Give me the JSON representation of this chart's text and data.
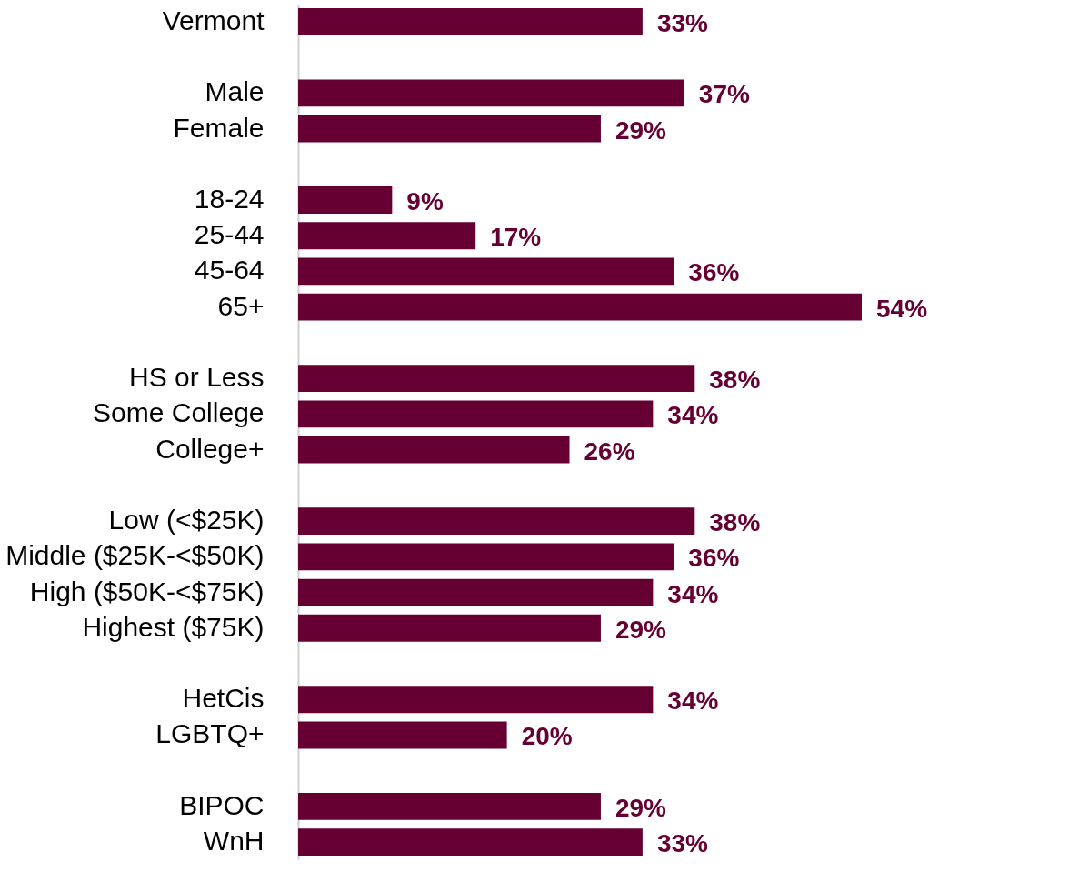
{
  "chart_data": {
    "type": "bar",
    "orientation": "horizontal",
    "categories": [
      "Vermont",
      null,
      "Male",
      "Female",
      null,
      "18-24",
      "25-44",
      "45-64",
      "65+",
      null,
      "HS or Less",
      "Some College",
      "College+",
      null,
      "Low (<$25K)",
      "Middle ($25K-<$50K)",
      "High ($50K-<$75K)",
      "Highest ($75K)",
      null,
      "HetCis",
      "LGBTQ+",
      null,
      "BIPOC",
      "WnH"
    ],
    "values": [
      33,
      null,
      37,
      29,
      null,
      9,
      17,
      36,
      54,
      null,
      38,
      34,
      26,
      null,
      38,
      36,
      34,
      29,
      null,
      34,
      20,
      null,
      29,
      33
    ],
    "value_labels": [
      "33%",
      null,
      "37%",
      "29%",
      null,
      "9%",
      "17%",
      "36%",
      "54%",
      null,
      "38%",
      "34%",
      "26%",
      null,
      "38%",
      "36%",
      "34%",
      "29%",
      null,
      "34%",
      "20%",
      null,
      "29%",
      "33%"
    ],
    "color": "#660033",
    "grid": false
  }
}
